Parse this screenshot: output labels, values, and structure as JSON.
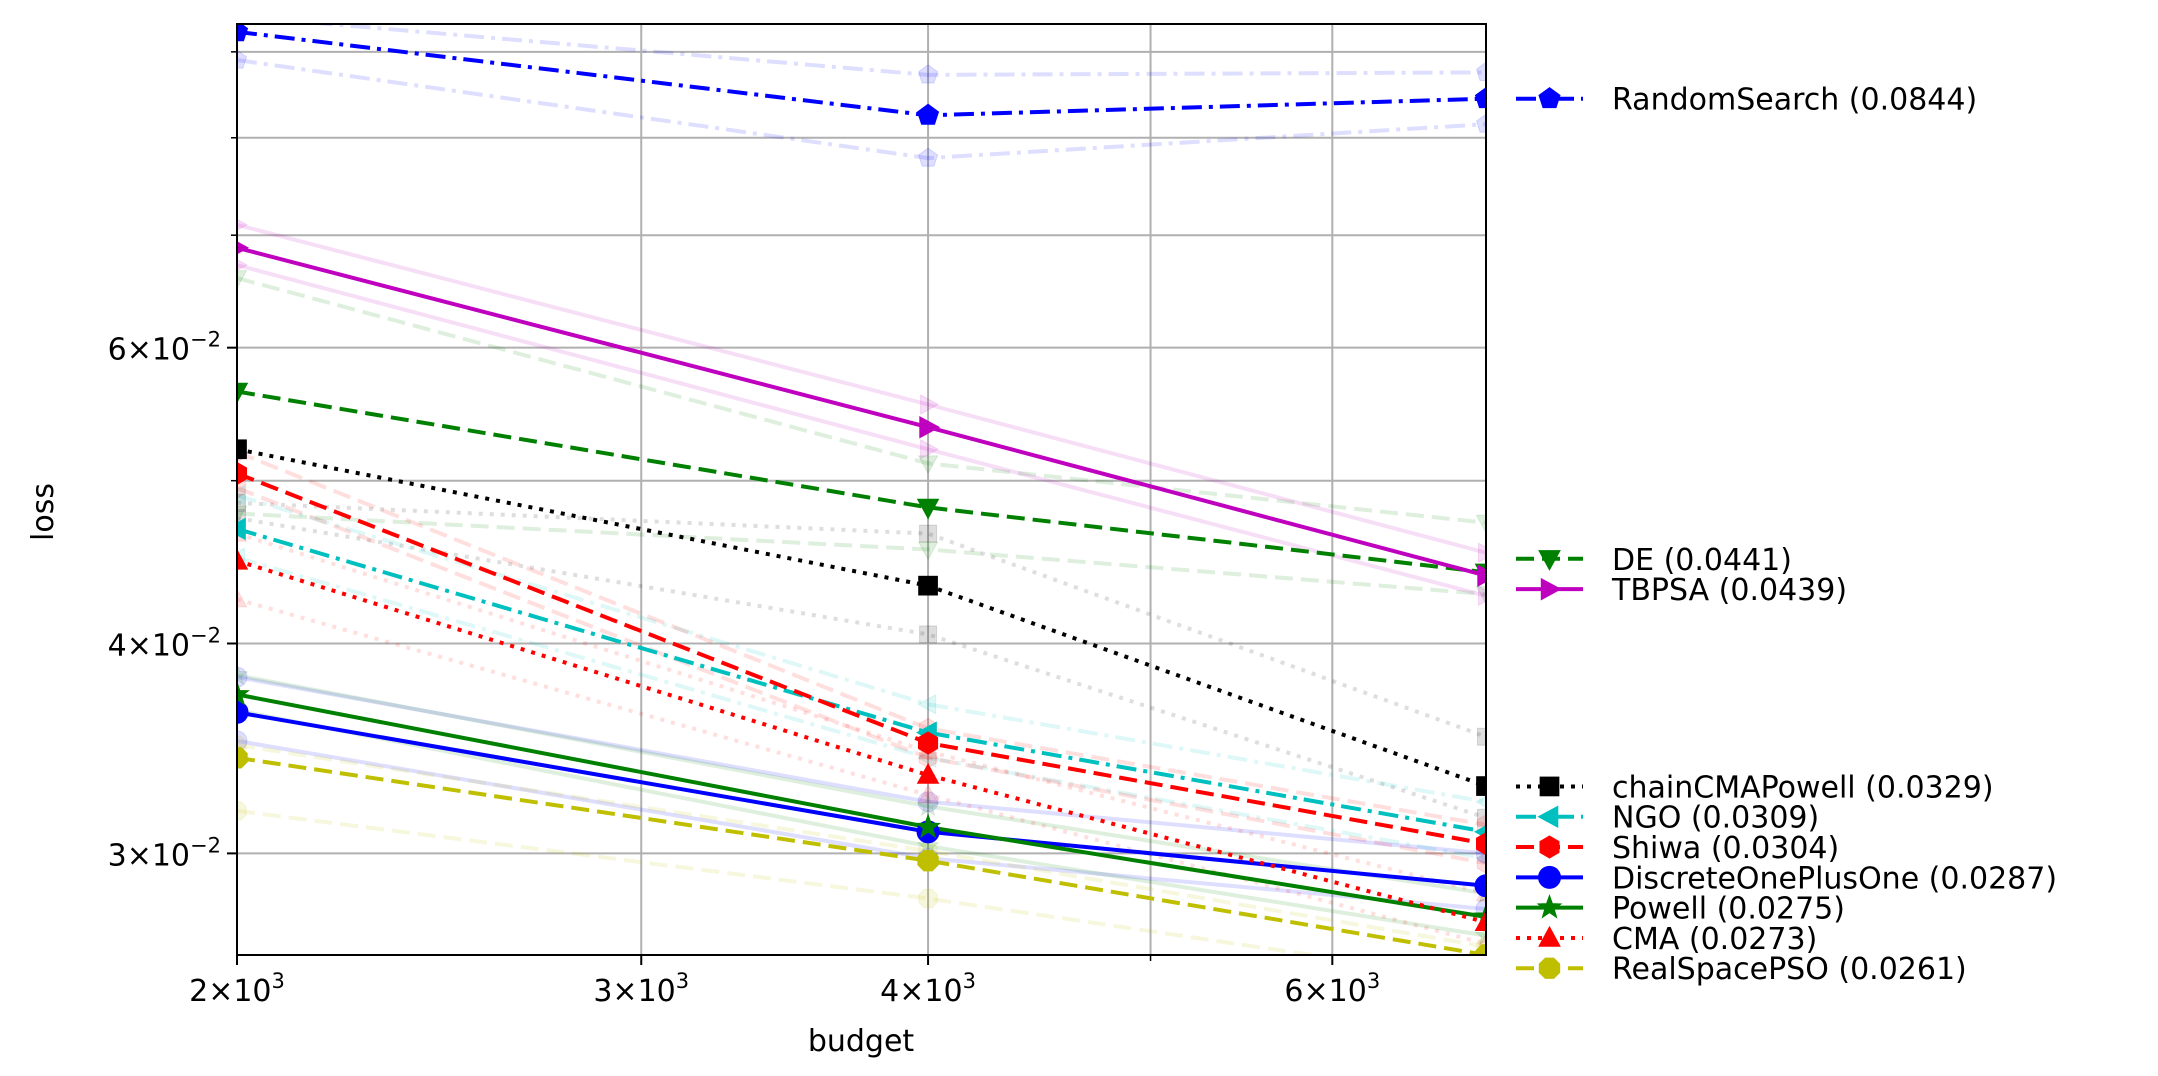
{
  "chart_data": {
    "type": "line",
    "xlabel": "budget",
    "ylabel": "loss",
    "xscale": "log",
    "yscale": "log",
    "xlim": [
      2000,
      7000
    ],
    "ylim": [
      0.0261,
      0.0935
    ],
    "grid": true,
    "legend_position": "right",
    "x_ticks": [
      {
        "value": 2000,
        "mantissa": "2",
        "exp": "3"
      },
      {
        "value": 3000,
        "mantissa": "3",
        "exp": "3"
      },
      {
        "value": 4000,
        "mantissa": "4",
        "exp": "3"
      },
      {
        "value": 6000,
        "mantissa": "6",
        "exp": "3"
      }
    ],
    "x_minor_ticks": [
      5000
    ],
    "y_ticks": [
      {
        "value": 0.03,
        "mantissa": "3",
        "exp": "−2"
      },
      {
        "value": 0.04,
        "mantissa": "4",
        "exp": "−2"
      },
      {
        "value": 0.06,
        "mantissa": "6",
        "exp": "−2"
      }
    ],
    "y_minor_ticks": [
      0.05,
      0.07,
      0.08,
      0.09
    ],
    "x": [
      2000,
      4000,
      7000
    ],
    "series": [
      {
        "name": "RandomSearch (0.0844)",
        "color": "#0000ff",
        "dash": "dashdot",
        "marker": "pentagon",
        "values": [
          0.0925,
          0.0825,
          0.0844
        ],
        "band_upper": [
          0.0945,
          0.0872,
          0.0875
        ],
        "band_lower": [
          0.089,
          0.0778,
          0.0815
        ]
      },
      {
        "name": "DE (0.0441)",
        "color": "#008000",
        "dash": "dashed",
        "marker": "triangle-down",
        "values": [
          0.0565,
          0.0482,
          0.0441
        ],
        "band_upper": [
          0.066,
          0.0512,
          0.0472
        ],
        "band_lower": [
          0.0478,
          0.0455,
          0.0428
        ]
      },
      {
        "name": "TBPSA (0.0439)",
        "color": "#bf00bf",
        "dash": "solid",
        "marker": "triangle-right",
        "values": [
          0.0688,
          0.0538,
          0.0439
        ],
        "band_upper": [
          0.071,
          0.0555,
          0.0453
        ],
        "band_lower": [
          0.0672,
          0.0522,
          0.0427
        ]
      },
      {
        "name": "chainCMAPowell (0.0329)",
        "color": "#000000",
        "dash": "dotted",
        "marker": "square",
        "values": [
          0.0522,
          0.0433,
          0.0329
        ],
        "band_upper": [
          0.0485,
          0.0465,
          0.0352
        ],
        "band_lower": [
          0.0475,
          0.0405,
          0.0315
        ]
      },
      {
        "name": "NGO (0.0309)",
        "color": "#00bfbf",
        "dash": "dashdot",
        "marker": "triangle-left",
        "values": [
          0.0468,
          0.0354,
          0.0309
        ],
        "band_upper": [
          0.049,
          0.0368,
          0.0322
        ],
        "band_lower": [
          0.045,
          0.0342,
          0.0298
        ]
      },
      {
        "name": "Shiwa (0.0304)",
        "color": "#ff0000",
        "dash": "dashed",
        "marker": "hexagon",
        "values": [
          0.0505,
          0.0349,
          0.0304
        ],
        "band_upper": [
          0.052,
          0.0356,
          0.0312
        ],
        "band_lower": [
          0.0495,
          0.0342,
          0.0296
        ]
      },
      {
        "name": "DiscreteOnePlusOne (0.0287)",
        "color": "#0000ff",
        "dash": "solid",
        "marker": "circle",
        "values": [
          0.0364,
          0.0309,
          0.0287
        ],
        "band_upper": [
          0.0382,
          0.0322,
          0.03
        ],
        "band_lower": [
          0.035,
          0.0298,
          0.0278
        ]
      },
      {
        "name": "Powell (0.0275)",
        "color": "#008000",
        "dash": "solid",
        "marker": "star",
        "values": [
          0.0373,
          0.0311,
          0.0275
        ],
        "band_upper": [
          0.0383,
          0.032,
          0.0284
        ],
        "band_lower": [
          0.0365,
          0.0303,
          0.0268
        ]
      },
      {
        "name": "CMA (0.0273)",
        "color": "#ff0000",
        "dash": "dotted",
        "marker": "triangle-up",
        "values": [
          0.0448,
          0.0334,
          0.0273
        ],
        "band_upper": [
          0.0465,
          0.0345,
          0.0284
        ],
        "band_lower": [
          0.0425,
          0.0325,
          0.0265
        ]
      },
      {
        "name": "RealSpacePSO (0.0261)",
        "color": "#bfbf00",
        "dash": "dashed",
        "marker": "octagon",
        "values": [
          0.0342,
          0.0297,
          0.0261
        ],
        "band_upper": [
          0.0348,
          0.0301,
          0.0264
        ],
        "band_lower": [
          0.0318,
          0.0282,
          0.0252
        ]
      }
    ],
    "legend_groups": [
      [
        0
      ],
      [
        1,
        2
      ],
      [
        3,
        4,
        5,
        6,
        7,
        8,
        9
      ]
    ]
  }
}
